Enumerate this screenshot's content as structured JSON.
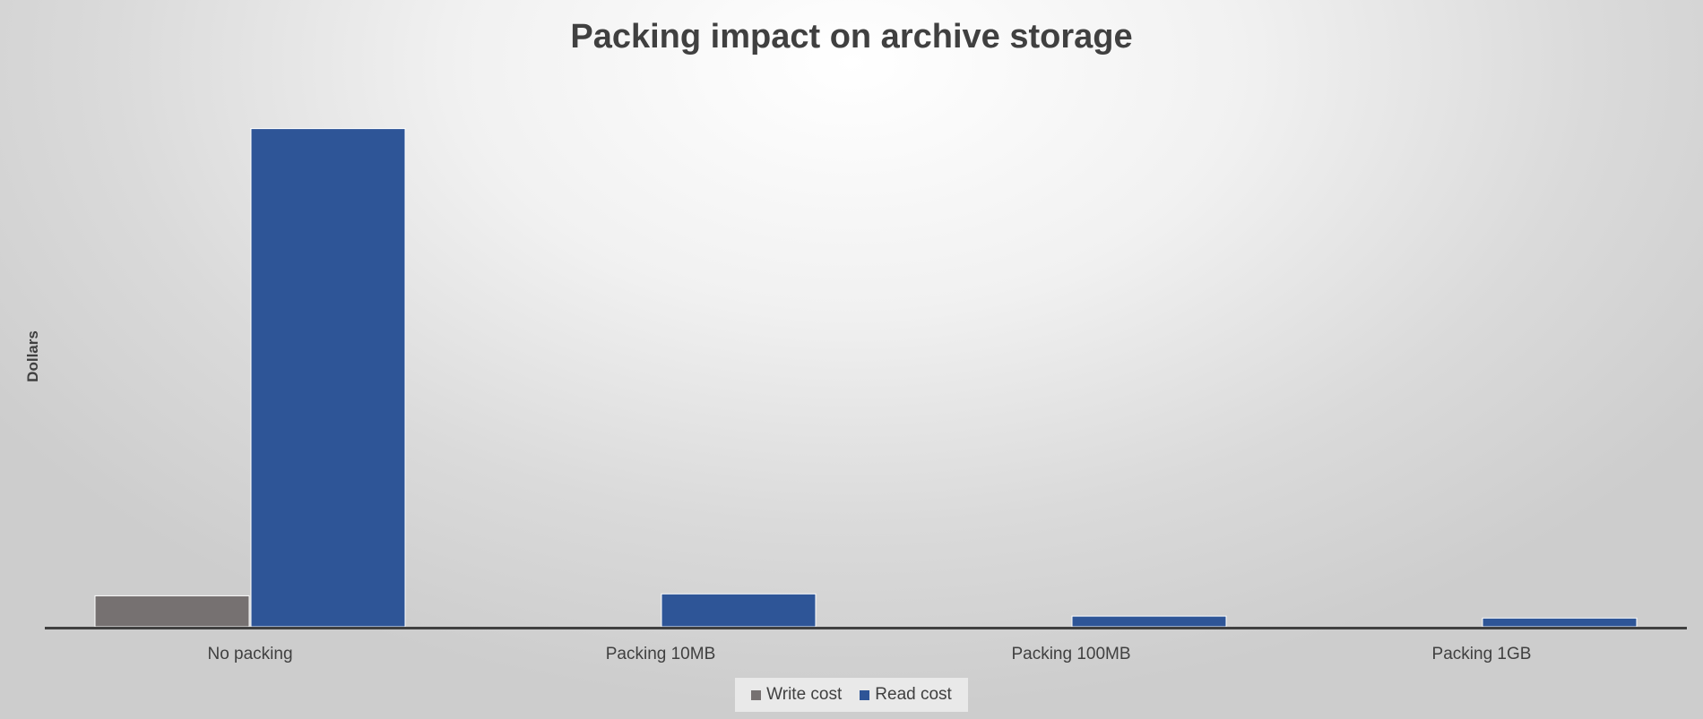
{
  "chart_data": {
    "type": "bar",
    "title": "Packing impact on archive storage",
    "ylabel": "Dollars",
    "xlabel": "",
    "categories": [
      "No packing",
      "Packing 10MB",
      "Packing 100MB",
      "Packing 1GB"
    ],
    "series": [
      {
        "name": "Write cost",
        "color": "#767171",
        "values": [
          32,
          0,
          0,
          0
        ]
      },
      {
        "name": "Read cost",
        "color": "#2e5597",
        "values": [
          515,
          34,
          11,
          9
        ]
      }
    ],
    "ylim": [
      0,
      560
    ],
    "grid": false,
    "show_y_ticks": false,
    "legend_position": "bottom"
  }
}
